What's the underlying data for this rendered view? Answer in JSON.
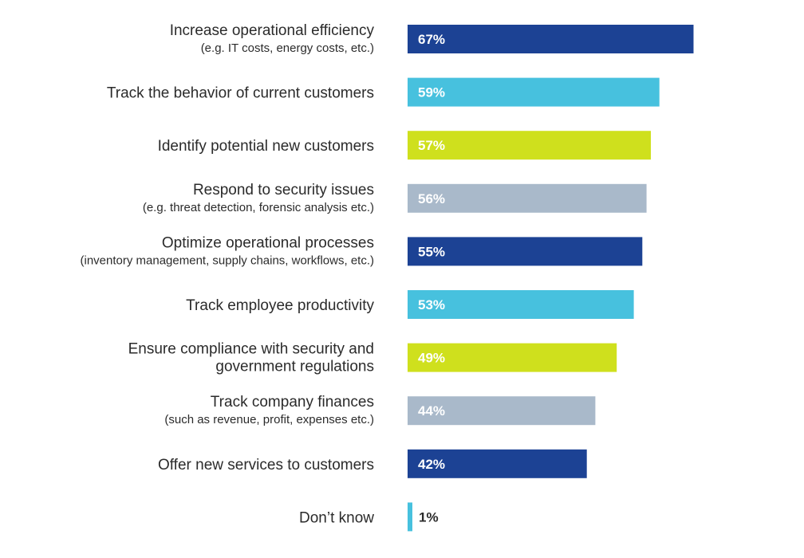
{
  "chart_data": {
    "type": "bar",
    "orientation": "horizontal",
    "categories": [
      {
        "label": [
          "Increase operational efficiency"
        ],
        "sublabel": "(e.g. IT costs, energy costs, etc.)"
      },
      {
        "label": [
          "Track the behavior of current customers"
        ],
        "sublabel": ""
      },
      {
        "label": [
          "Identify potential new customers"
        ],
        "sublabel": ""
      },
      {
        "label": [
          "Respond to security issues"
        ],
        "sublabel": "(e.g. threat detection, forensic analysis etc.)"
      },
      {
        "label": [
          "Optimize operational processes"
        ],
        "sublabel": "(inventory management, supply chains, workflows, etc.)"
      },
      {
        "label": [
          "Track employee productivity"
        ],
        "sublabel": ""
      },
      {
        "label": [
          "Ensure compliance with security and",
          "government regulations"
        ],
        "sublabel": ""
      },
      {
        "label": [
          "Track company finances"
        ],
        "sublabel": "(such as revenue, profit, expenses etc.)"
      },
      {
        "label": [
          "Offer new services to customers"
        ],
        "sublabel": ""
      },
      {
        "label": [
          "Don’t know"
        ],
        "sublabel": ""
      }
    ],
    "values": [
      67,
      59,
      57,
      56,
      55,
      53,
      49,
      44,
      42,
      1
    ],
    "value_labels": [
      "67%",
      "59%",
      "57%",
      "56%",
      "55%",
      "53%",
      "49%",
      "44%",
      "42%",
      "1%"
    ],
    "unit": "%",
    "bar_colors": [
      "#1c4294",
      "#47c1de",
      "#cfe01d",
      "#a9b9ca",
      "#1c4294",
      "#47c1de",
      "#cfe01d",
      "#a9b9ca",
      "#1c4294",
      "#47c1de"
    ],
    "value_label_colors": [
      "#ffffff",
      "#ffffff",
      "#ffffff",
      "#ffffff",
      "#ffffff",
      "#ffffff",
      "#ffffff",
      "#ffffff",
      "#ffffff",
      "#2b2b2b"
    ],
    "xlim": [
      0,
      100
    ],
    "grid": false,
    "legend": "none"
  }
}
